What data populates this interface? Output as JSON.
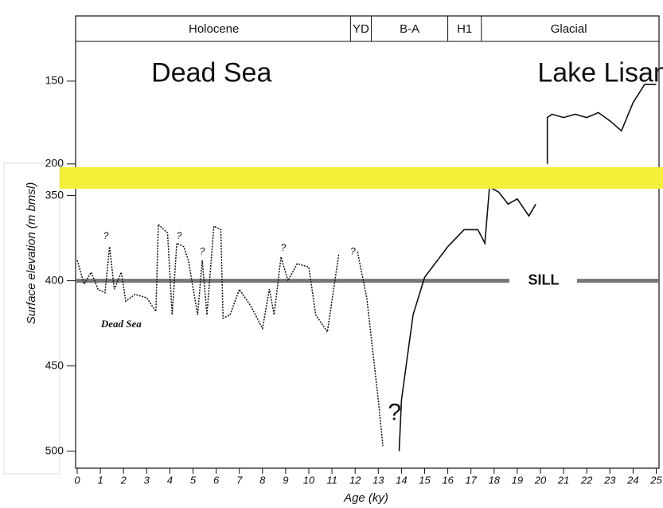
{
  "chart_data": {
    "type": "line",
    "xlabel": "Age (ky)",
    "ylabel": "Surface elevation (m bmsl)",
    "xlim": [
      0,
      25
    ],
    "xticks": [
      0,
      1,
      2,
      3,
      4,
      5,
      6,
      7,
      8,
      9,
      10,
      11,
      12,
      13,
      14,
      15,
      16,
      17,
      18,
      19,
      20,
      21,
      22,
      23,
      24,
      25
    ],
    "periods": [
      {
        "label": "Holocene",
        "start": 0,
        "end": 11.8
      },
      {
        "label": "YD",
        "start": 11.8,
        "end": 12.7
      },
      {
        "label": "B-A",
        "start": 12.7,
        "end": 16.0
      },
      {
        "label": "H1",
        "start": 16.0,
        "end": 17.45
      },
      {
        "label": "Glacial",
        "start": 17.45,
        "end": 25
      }
    ],
    "panels": [
      {
        "ylim": [
          126,
          202
        ],
        "yticks": [
          150,
          200
        ],
        "region_labels": [
          {
            "text": "Dead Sea",
            "x": 5.8,
            "y": 146
          },
          {
            "text": "Lake Lisan",
            "x": 22.7,
            "y": 146
          }
        ],
        "series": [
          {
            "color": "#111111",
            "style": "solid",
            "x": [
              20.3,
              20.3,
              20.5,
              21,
              21.5,
              22,
              22.5,
              23,
              23.5,
              24,
              24.5,
              25
            ],
            "values": [
              200,
              172,
              170,
              172,
              170,
              172,
              169,
              174,
              180,
              163,
              152,
              152
            ]
          }
        ]
      },
      {
        "ylim": [
          346,
          510
        ],
        "yticks": [
          350,
          400,
          450,
          500
        ],
        "sill": {
          "label": "SILL",
          "value": 400
        },
        "note": {
          "text": "Dead Sea",
          "x": 1.9,
          "y": 426
        },
        "question_marks": [
          {
            "text": "?",
            "x": 1.24,
            "y": 374
          },
          {
            "text": "?",
            "x": 4.4,
            "y": 374
          },
          {
            "text": "?",
            "x": 5.4,
            "y": 383
          },
          {
            "text": "?",
            "x": 8.9,
            "y": 381
          },
          {
            "text": "?",
            "x": 11.9,
            "y": 383
          },
          {
            "text": "?",
            "x": 13.7,
            "y": 478
          }
        ],
        "series": [
          {
            "color": "#111111",
            "style": "solid",
            "x": [
              13.9,
              14,
              14.5,
              15,
              16,
              16.7,
              17.3,
              17.6,
              17.8,
              18.2,
              18.6,
              19,
              19.5,
              19.8
            ],
            "values": [
              500,
              470,
              420,
              398,
              380,
              370,
              370,
              378,
              345,
              348,
              355,
              352,
              362,
              355
            ]
          },
          {
            "color": "#111111",
            "style": "dashed",
            "x": [
              0,
              0.3,
              0.6,
              0.9,
              1.2,
              1.4,
              1.6,
              1.9,
              2.1,
              2.5,
              3,
              3.4,
              3.5,
              3.9,
              4.1,
              4.3,
              4.6,
              4.8,
              5.2,
              5.4,
              5.6,
              5.9,
              6.2,
              6.3,
              6.6,
              7,
              7.5,
              8,
              8.3,
              8.5,
              8.8,
              9.1,
              9.5,
              10,
              10.3,
              10.8,
              11.3,
              11.7,
              12.1,
              12.5,
              13,
              13.2
            ],
            "values": [
              388,
              402,
              395,
              405,
              407,
              380,
              405,
              395,
              412,
              408,
              410,
              418,
              367,
              372,
              420,
              378,
              380,
              388,
              420,
              388,
              420,
              368,
              370,
              422,
              420,
              405,
              415,
              428,
              405,
              420,
              386,
              400,
              390,
              392,
              420,
              430,
              384,
              null,
              383,
              410,
              470,
              497
            ]
          }
        ]
      }
    ]
  }
}
